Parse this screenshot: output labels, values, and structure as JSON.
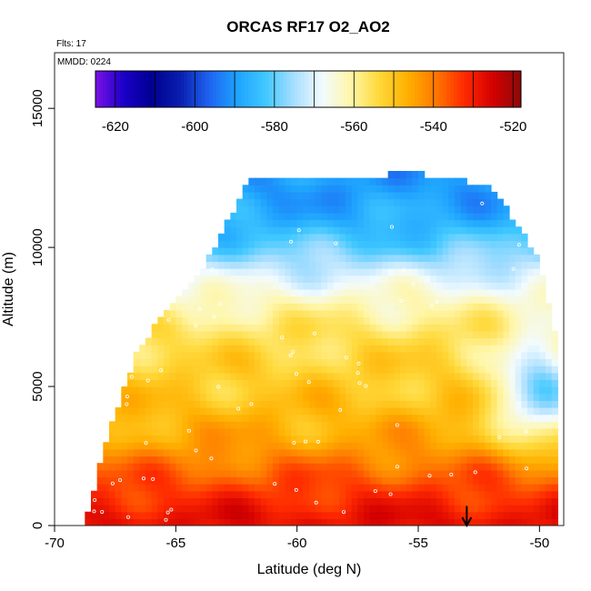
{
  "chart_data": {
    "type": "heatmap",
    "title": "ORCAS RF17 O2_AO2",
    "xlabel": "Latitude (deg N)",
    "ylabel": "Altitude (m)",
    "xlim": [
      -70,
      -49
    ],
    "ylim": [
      0,
      17000
    ],
    "x_ticks": [
      -70,
      -65,
      -60,
      -55,
      -50
    ],
    "y_ticks": [
      0,
      5000,
      10000,
      15000
    ],
    "annotations": [
      "Flts: 17",
      "MMDD: 0224"
    ],
    "arrow_marker": {
      "x": -53,
      "y_from": 700,
      "y_to": 0
    },
    "colorbar": {
      "range": [
        -625,
        -518
      ],
      "ticks": [
        -620,
        -600,
        -580,
        -560,
        -540,
        -520
      ],
      "colors": [
        "#7a12e6",
        "#1a00c8",
        "#00008f",
        "#0a1fb0",
        "#1e63f0",
        "#1ea3ff",
        "#40c8ff",
        "#a8deff",
        "#f2fbff",
        "#fff6a8",
        "#ffd93a",
        "#ffb000",
        "#ff7800",
        "#ff2a00",
        "#d40000",
        "#8c0a0a"
      ]
    },
    "domain": {
      "top_edge": [
        [
          -68.7,
          200
        ],
        [
          -68.2,
          1800
        ],
        [
          -67.5,
          3900
        ],
        [
          -67,
          5200
        ],
        [
          -66.5,
          6300
        ],
        [
          -65.5,
          7500
        ],
        [
          -64,
          9000
        ],
        [
          -63,
          10600
        ],
        [
          -62,
          12300
        ],
        [
          -57,
          12400
        ],
        [
          -55.5,
          12600
        ],
        [
          -52,
          12100
        ],
        [
          -51,
          10800
        ],
        [
          -50,
          9500
        ],
        [
          -49.3,
          6500
        ],
        [
          -49.3,
          200
        ]
      ],
      "bottom": 0
    },
    "value_field": {
      "altitude_rows": [
        [
          12000,
          -590
        ],
        [
          11000,
          -587
        ],
        [
          10000,
          -580
        ],
        [
          9000,
          -570
        ],
        [
          8000,
          -562
        ],
        [
          7000,
          -556
        ],
        [
          6000,
          -553
        ],
        [
          5000,
          -551
        ],
        [
          4000,
          -548
        ],
        [
          3000,
          -545
        ],
        [
          2000,
          -538
        ],
        [
          1000,
          -532
        ],
        [
          300,
          -528
        ]
      ],
      "high_latitude_anomaly": {
        "lat": -50,
        "alt": 4800,
        "value": -578
      }
    }
  }
}
